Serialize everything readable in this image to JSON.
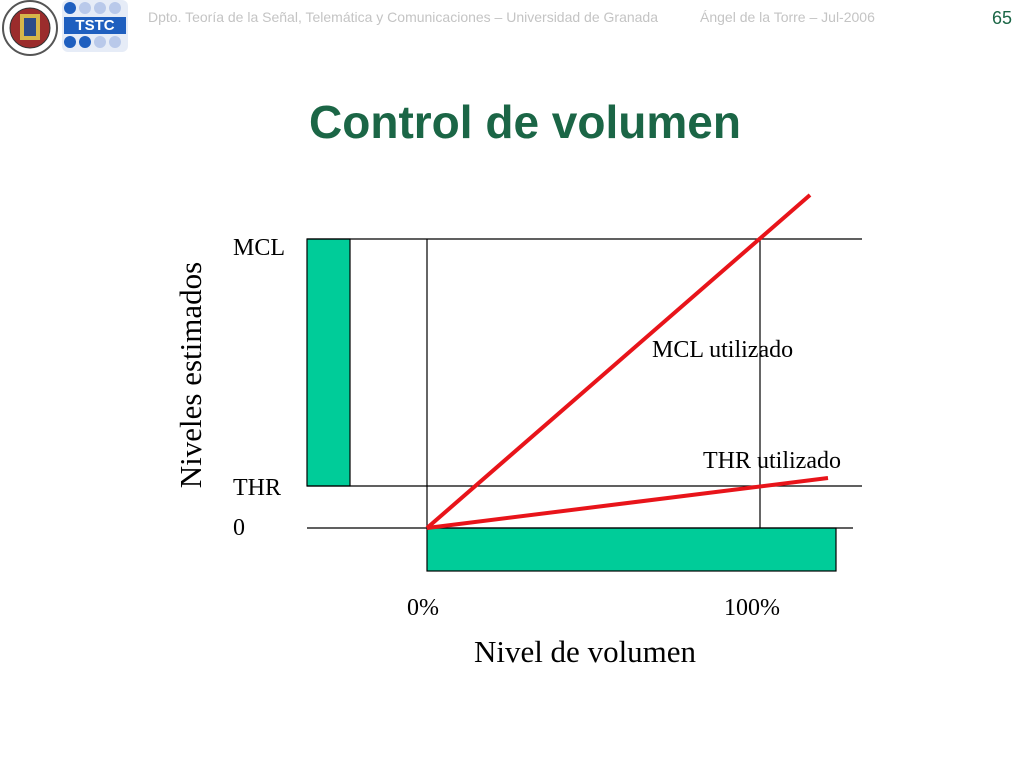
{
  "header": {
    "department": "Dpto. Teoría de la Señal, Telemática y Comunicaciones – Universidad de Granada",
    "author": "Ángel de la Torre – Jul-2006",
    "page_number": "65",
    "logo_text": "TSTC"
  },
  "title": "Control de volumen",
  "diagram": {
    "y_axis_label": "Niveles estimados",
    "x_axis_label": "Nivel de volumen",
    "level_labels": [
      "MCL",
      "THR",
      "0"
    ],
    "volume_labels": [
      "0%",
      "100%"
    ],
    "line_labels": [
      "MCL utilizado",
      "THR utilizado"
    ]
  }
}
